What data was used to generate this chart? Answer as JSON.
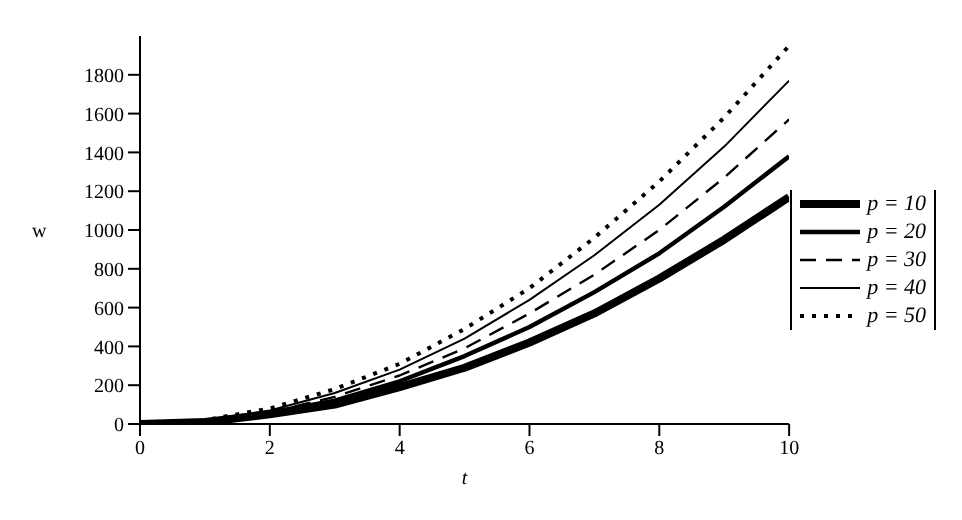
{
  "chart_data": {
    "type": "line",
    "xlabel": "t",
    "ylabel": "w",
    "x": [
      0,
      1,
      2,
      3,
      4,
      5,
      6,
      7,
      8,
      9,
      10
    ],
    "series": [
      {
        "name": "p = 10",
        "color": "#000000",
        "line_style": "solid",
        "values": [
          0,
          10,
          50,
          100,
          190,
          290,
          420,
          570,
          750,
          950,
          1170
        ]
      },
      {
        "name": "p = 20",
        "color": "#000000",
        "line_style": "solid",
        "values": [
          0,
          10,
          60,
          120,
          220,
          350,
          500,
          680,
          880,
          1120,
          1380
        ]
      },
      {
        "name": "p = 30",
        "color": "#000000",
        "line_style": "dashed",
        "values": [
          0,
          20,
          60,
          140,
          250,
          390,
          570,
          770,
          1000,
          1270,
          1570
        ]
      },
      {
        "name": "p = 40",
        "color": "#000000",
        "line_style": "solid",
        "values": [
          0,
          20,
          70,
          160,
          280,
          440,
          640,
          870,
          1130,
          1430,
          1770
        ]
      },
      {
        "name": "p = 50",
        "color": "#000000",
        "line_style": "dotted",
        "values": [
          0,
          20,
          80,
          180,
          310,
          490,
          700,
          960,
          1250,
          1580,
          1950
        ]
      }
    ],
    "xlim": [
      0,
      10
    ],
    "xticks": [
      0,
      2,
      4,
      6,
      8,
      10
    ],
    "ylim": [
      0,
      2000
    ],
    "yticks": [
      0,
      200,
      400,
      600,
      800,
      1000,
      1200,
      1400,
      1600,
      1800
    ],
    "grid": false,
    "legend": "right",
    "marker": "none"
  }
}
